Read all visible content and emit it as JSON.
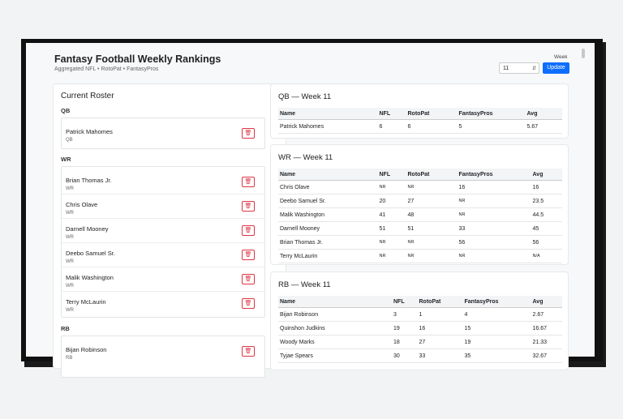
{
  "header": {
    "title": "Fantasy Football Weekly Rankings",
    "subtitle": "Aggregated NFL • RotoPat • FantasyPros",
    "week_label": "Week",
    "week_value": "11",
    "update_label": "Update"
  },
  "roster": {
    "title": "Current Roster",
    "groups": [
      {
        "label": "QB",
        "players": [
          {
            "name": "Patrick Mahomes",
            "pos": "QB"
          }
        ]
      },
      {
        "label": "WR",
        "players": [
          {
            "name": "Brian Thomas Jr.",
            "pos": "WR"
          },
          {
            "name": "Chris Olave",
            "pos": "WR"
          },
          {
            "name": "Darnell Mooney",
            "pos": "WR"
          },
          {
            "name": "Deebo Samuel Sr.",
            "pos": "WR"
          },
          {
            "name": "Malik Washington",
            "pos": "WR"
          },
          {
            "name": "Terry McLaurin",
            "pos": "WR"
          }
        ]
      },
      {
        "label": "RB",
        "players": [
          {
            "name": "Bijan Robinson",
            "pos": "RB"
          }
        ]
      }
    ]
  },
  "tables": [
    {
      "title": "QB — Week 11",
      "columns": [
        "Name",
        "NFL",
        "RotoPat",
        "FantasyPros",
        "Avg"
      ],
      "rows": [
        [
          "Patrick Mahomes",
          "6",
          "6",
          "5",
          "5.67"
        ]
      ]
    },
    {
      "title": "WR — Week 11",
      "columns": [
        "Name",
        "NFL",
        "RotoPat",
        "FantasyPros",
        "Avg"
      ],
      "rows": [
        [
          "Chris Olave",
          "NR",
          "NR",
          "16",
          "16"
        ],
        [
          "Deebo Samuel Sr.",
          "20",
          "27",
          "NR",
          "23.5"
        ],
        [
          "Malik Washington",
          "41",
          "48",
          "NR",
          "44.5"
        ],
        [
          "Darnell Mooney",
          "51",
          "51",
          "33",
          "45"
        ],
        [
          "Brian Thomas Jr.",
          "NR",
          "NR",
          "56",
          "56"
        ],
        [
          "Terry McLaurin",
          "NR",
          "NR",
          "NR",
          "N/A"
        ]
      ]
    },
    {
      "title": "RB — Week 11",
      "columns": [
        "Name",
        "NFL",
        "RotoPat",
        "FantasyPros",
        "Avg"
      ],
      "rows": [
        [
          "Bijan Robinson",
          "3",
          "1",
          "4",
          "2.67"
        ],
        [
          "Quinshon Judkins",
          "19",
          "16",
          "15",
          "16.67"
        ],
        [
          "Woody Marks",
          "18",
          "27",
          "19",
          "21.33"
        ],
        [
          "Tyjae Spears",
          "30",
          "33",
          "35",
          "32.67"
        ]
      ]
    }
  ]
}
